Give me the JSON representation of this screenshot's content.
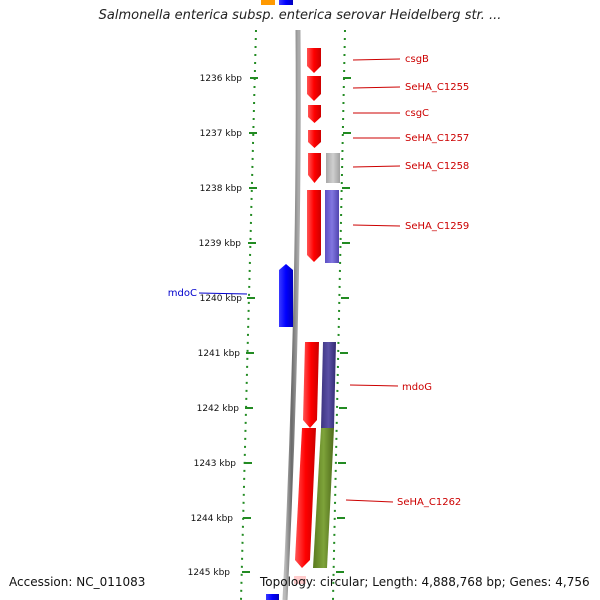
{
  "title": "Salmonella enterica subsp. enterica serovar Heidelberg str. ...",
  "footer": {
    "accession": "Accession: NC_011083",
    "topology": "Topology: circular; Length: 4,888,768 bp; Genes: 4,756"
  },
  "ruler": {
    "ticks": [
      {
        "label": "1236 kbp"
      },
      {
        "label": "1237 kbp"
      },
      {
        "label": "1238 kbp"
      },
      {
        "label": "1239 kbp"
      },
      {
        "label": "1240 kbp"
      },
      {
        "label": "1241 kbp"
      },
      {
        "label": "1242 kbp"
      },
      {
        "label": "1243 kbp"
      },
      {
        "label": "1244 kbp"
      },
      {
        "label": "1245 kbp"
      }
    ]
  },
  "genes": [
    {
      "name": "csgB",
      "color": "#cc0000"
    },
    {
      "name": "SeHA_C1255",
      "color": "#cc0000"
    },
    {
      "name": "csgC",
      "color": "#cc0000"
    },
    {
      "name": "SeHA_C1257",
      "color": "#cc0000"
    },
    {
      "name": "SeHA_C1258",
      "color": "#cc0000"
    },
    {
      "name": "SeHA_C1259",
      "color": "#cc0000"
    },
    {
      "name": "mdoC",
      "color": "#0000cc"
    },
    {
      "name": "mdoG",
      "color": "#cc0000"
    },
    {
      "name": "SeHA_C1262",
      "color": "#cc0000"
    }
  ],
  "colors": {
    "forward_gene": "#ff0000",
    "reverse_gene": "#0000ff",
    "backbone": "#888888",
    "ticks": "#228b22",
    "cog_gray": "#b0b0b0",
    "cog_purple": "#6a5acd",
    "cog_dark": "#4b3f8f",
    "cog_olive": "#6b8e23",
    "top_orange": "#ff9900"
  }
}
